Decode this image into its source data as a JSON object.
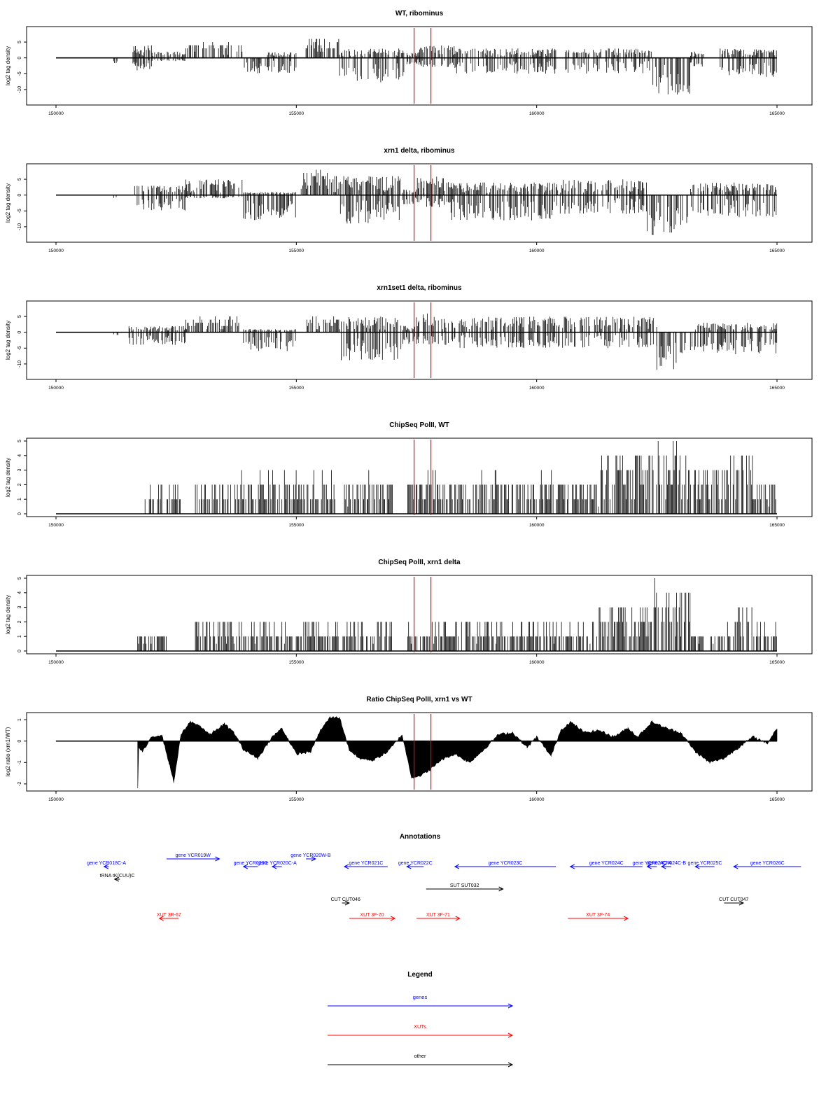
{
  "chart_data": [
    {
      "type": "bar",
      "title": "WT, ribominus",
      "xlabel": "",
      "ylabel": "log2 tag density",
      "xlim": [
        150000,
        165000
      ],
      "ylim": [
        -14,
        9
      ],
      "x_ticks": [
        150000,
        155000,
        160000,
        165000
      ],
      "y_ticks": [
        -10,
        -5,
        0,
        5
      ],
      "marker_lines": [
        157450,
        157800
      ],
      "marker_color": "#ff0000",
      "series": [
        {
          "regions": [
            {
              "start": 151200,
              "end": 151300,
              "min": -2,
              "max": 0
            },
            {
              "start": 151600,
              "end": 152000,
              "min": -4,
              "max": 4
            },
            {
              "start": 152000,
              "end": 152700,
              "min": -1,
              "max": 2
            },
            {
              "start": 152700,
              "end": 153900,
              "min": 0,
              "max": 5
            },
            {
              "start": 153900,
              "end": 154400,
              "min": -5,
              "max": 0
            },
            {
              "start": 154400,
              "end": 155000,
              "min": -5,
              "max": 2
            },
            {
              "start": 155200,
              "end": 155900,
              "min": 0,
              "max": 6
            },
            {
              "start": 155900,
              "end": 156800,
              "min": -8,
              "max": 3
            },
            {
              "start": 156800,
              "end": 157250,
              "min": -7,
              "max": 3
            },
            {
              "start": 157300,
              "end": 157550,
              "min": -2,
              "max": 2
            },
            {
              "start": 157550,
              "end": 158300,
              "min": -3,
              "max": 4
            },
            {
              "start": 158300,
              "end": 160400,
              "min": -5,
              "max": 3
            },
            {
              "start": 160600,
              "end": 162400,
              "min": -5,
              "max": 3
            },
            {
              "start": 162400,
              "end": 163200,
              "min": -12,
              "max": 0
            },
            {
              "start": 163200,
              "end": 163500,
              "min": -3,
              "max": 2
            },
            {
              "start": 163800,
              "end": 165000,
              "min": -6,
              "max": 3
            }
          ]
        }
      ]
    },
    {
      "type": "bar",
      "title": "xrn1 delta, ribominus",
      "xlabel": "",
      "ylabel": "log2 tag density",
      "xlim": [
        150000,
        165000
      ],
      "ylim": [
        -14,
        9
      ],
      "x_ticks": [
        150000,
        155000,
        160000,
        165000
      ],
      "y_ticks": [
        -10,
        -5,
        0,
        5
      ],
      "marker_lines": [
        157450,
        157800
      ],
      "marker_color": "#ff0000",
      "series": [
        {
          "regions": [
            {
              "start": 151200,
              "end": 151300,
              "min": -1,
              "max": 0
            },
            {
              "start": 151600,
              "end": 152700,
              "min": -5,
              "max": 3
            },
            {
              "start": 152700,
              "end": 153900,
              "min": -1,
              "max": 5
            },
            {
              "start": 153900,
              "end": 155000,
              "min": -8,
              "max": 1
            },
            {
              "start": 155100,
              "end": 155900,
              "min": 0,
              "max": 8
            },
            {
              "start": 155900,
              "end": 157200,
              "min": -9,
              "max": 6
            },
            {
              "start": 157200,
              "end": 157500,
              "min": -3,
              "max": 2
            },
            {
              "start": 157500,
              "end": 158200,
              "min": -4,
              "max": 6
            },
            {
              "start": 158200,
              "end": 160500,
              "min": -8,
              "max": 4
            },
            {
              "start": 160500,
              "end": 162300,
              "min": -6,
              "max": 5
            },
            {
              "start": 162300,
              "end": 163200,
              "min": -13,
              "max": 0
            },
            {
              "start": 163200,
              "end": 165000,
              "min": -7,
              "max": 4
            }
          ]
        }
      ]
    },
    {
      "type": "bar",
      "title": "xrn1set1 delta, ribominus",
      "xlabel": "",
      "ylabel": "log2 tag density",
      "xlim": [
        150000,
        165000
      ],
      "ylim": [
        -14,
        9
      ],
      "x_ticks": [
        150000,
        155000,
        160000,
        165000
      ],
      "y_ticks": [
        -10,
        -5,
        0,
        5
      ],
      "marker_lines": [
        157450,
        157800
      ],
      "marker_color": "#ff0000",
      "series": [
        {
          "regions": [
            {
              "start": 151200,
              "end": 151300,
              "min": -1,
              "max": 0
            },
            {
              "start": 151500,
              "end": 152700,
              "min": -4,
              "max": 2
            },
            {
              "start": 152700,
              "end": 153900,
              "min": 0,
              "max": 5
            },
            {
              "start": 153900,
              "end": 155000,
              "min": -6,
              "max": 1
            },
            {
              "start": 155200,
              "end": 155900,
              "min": 0,
              "max": 5
            },
            {
              "start": 155900,
              "end": 157200,
              "min": -9,
              "max": 5
            },
            {
              "start": 157200,
              "end": 157500,
              "min": -4,
              "max": 2
            },
            {
              "start": 157500,
              "end": 158300,
              "min": -4,
              "max": 6
            },
            {
              "start": 158300,
              "end": 160400,
              "min": -5,
              "max": 5
            },
            {
              "start": 160400,
              "end": 162500,
              "min": -5,
              "max": 5
            },
            {
              "start": 162500,
              "end": 163300,
              "min": -12,
              "max": 0
            },
            {
              "start": 163300,
              "end": 165000,
              "min": -7,
              "max": 3
            }
          ]
        }
      ]
    },
    {
      "type": "bar",
      "title": "ChipSeq PolII, WT",
      "xlabel": "",
      "ylabel": "log2 tag density",
      "xlim": [
        150000,
        165000
      ],
      "ylim": [
        0,
        5
      ],
      "x_ticks": [
        150000,
        155000,
        160000,
        165000
      ],
      "y_ticks": [
        0,
        1,
        2,
        3,
        4,
        5
      ],
      "marker_lines": [
        157450,
        157800
      ],
      "marker_color": "#ff0000",
      "series": [
        {
          "regions": [
            {
              "start": 151800,
              "end": 152600,
              "min": 0,
              "max": 2
            },
            {
              "start": 152900,
              "end": 155900,
              "min": 0,
              "max": 2.6
            },
            {
              "start": 156000,
              "end": 157000,
              "min": 0,
              "max": 2.6
            },
            {
              "start": 157300,
              "end": 161300,
              "min": 0,
              "max": 2.6
            },
            {
              "start": 161300,
              "end": 162300,
              "min": 0,
              "max": 4
            },
            {
              "start": 162300,
              "end": 163200,
              "min": 0,
              "max": 5
            },
            {
              "start": 163200,
              "end": 164000,
              "min": 0,
              "max": 3.5
            },
            {
              "start": 164000,
              "end": 164500,
              "min": 0,
              "max": 4.2
            },
            {
              "start": 164500,
              "end": 165000,
              "min": 0,
              "max": 2.5
            }
          ]
        }
      ]
    },
    {
      "type": "bar",
      "title": "ChipSeq PolII, xrn1 delta",
      "xlabel": "",
      "ylabel": "log2 tag density",
      "xlim": [
        150000,
        165000
      ],
      "ylim": [
        0,
        5
      ],
      "x_ticks": [
        150000,
        155000,
        160000,
        165000
      ],
      "y_ticks": [
        0,
        1,
        2,
        3,
        4,
        5
      ],
      "marker_lines": [
        157450,
        157800
      ],
      "marker_color": "#ff0000",
      "series": [
        {
          "regions": [
            {
              "start": 151700,
              "end": 152300,
              "min": 0,
              "max": 1
            },
            {
              "start": 152900,
              "end": 154000,
              "min": 0,
              "max": 2
            },
            {
              "start": 154000,
              "end": 155900,
              "min": 0,
              "max": 1.8
            },
            {
              "start": 155900,
              "end": 157000,
              "min": 0,
              "max": 2.2
            },
            {
              "start": 157300,
              "end": 161300,
              "min": 0,
              "max": 2
            },
            {
              "start": 161300,
              "end": 162300,
              "min": 0,
              "max": 3
            },
            {
              "start": 162300,
              "end": 163200,
              "min": 0,
              "max": 4.7
            },
            {
              "start": 163200,
              "end": 163900,
              "min": 0,
              "max": 1.5
            },
            {
              "start": 163900,
              "end": 164500,
              "min": 0,
              "max": 3.2
            },
            {
              "start": 164500,
              "end": 165000,
              "min": 0,
              "max": 2
            }
          ]
        }
      ]
    },
    {
      "type": "area",
      "title": "Ratio ChipSeq PolII, xrn1 vs WT",
      "xlabel": "",
      "ylabel": "log2 ratio (xrn1/WT)",
      "xlim": [
        150000,
        165000
      ],
      "ylim": [
        -2.2,
        1.2
      ],
      "x_ticks": [
        150000,
        155000,
        160000,
        165000
      ],
      "y_ticks": [
        -2.0,
        -1.0,
        0.0,
        1.0
      ],
      "marker_lines": [
        157450,
        157800
      ],
      "marker_color": "#ff0000",
      "series": [
        {
          "x": [
            150000,
            151700,
            151701,
            151720,
            151800,
            152000,
            152200,
            152350,
            152450,
            152600,
            152800,
            153000,
            153200,
            153500,
            153700,
            153900,
            154200,
            154500,
            154700,
            155000,
            155300,
            155500,
            155700,
            155900,
            156100,
            156300,
            156600,
            156900,
            157200,
            157400,
            157600,
            157800,
            158000,
            158300,
            158600,
            158900,
            159200,
            159500,
            159800,
            160000,
            160300,
            160500,
            160700,
            161000,
            161300,
            161600,
            161900,
            162100,
            162400,
            162700,
            163000,
            163300,
            163600,
            163900,
            164200,
            164500,
            164800,
            165000
          ],
          "values": [
            0,
            0,
            -2.2,
            -0.3,
            -0.5,
            0.2,
            0.3,
            -1.0,
            -1.9,
            0.3,
            0.9,
            0.7,
            0.3,
            0.8,
            0.4,
            -0.4,
            -0.8,
            0.2,
            0.6,
            -0.6,
            -0.5,
            0.5,
            1.1,
            1.1,
            -0.4,
            -0.8,
            -0.9,
            -0.5,
            0.3,
            -1.7,
            -1.6,
            -1.3,
            -0.9,
            -0.6,
            -1.0,
            -0.4,
            0.3,
            0.4,
            -0.3,
            0.2,
            -0.7,
            0.5,
            0.9,
            0.4,
            0.5,
            0.2,
            0.6,
            0.2,
            0.9,
            0.6,
            0.4,
            -0.5,
            -1.0,
            -0.8,
            -0.3,
            0.2,
            -0.1,
            0.6
          ]
        }
      ]
    }
  ],
  "annotations": {
    "title": "Annotations",
    "items": [
      {
        "label": "gene YCR018C-A",
        "kind": "gene",
        "start": 151000,
        "end": 151100,
        "dir": "left",
        "row": 1
      },
      {
        "label": "gene YCR019W",
        "kind": "gene",
        "start": 152300,
        "end": 153400,
        "dir": "right",
        "row": 0
      },
      {
        "label": "gene YCR020C",
        "kind": "gene",
        "start": 153900,
        "end": 154200,
        "dir": "left",
        "row": 1
      },
      {
        "label": "gene YCR020C-A",
        "kind": "gene",
        "start": 154500,
        "end": 154700,
        "dir": "left",
        "row": 1
      },
      {
        "label": "gene YCR020W-B",
        "kind": "gene",
        "start": 155200,
        "end": 155400,
        "dir": "right",
        "row": 0
      },
      {
        "label": "gene YCR021C",
        "kind": "gene",
        "start": 156000,
        "end": 156900,
        "dir": "left",
        "row": 1
      },
      {
        "label": "gene YCR022C",
        "kind": "gene",
        "start": 157300,
        "end": 157650,
        "dir": "left",
        "row": 1
      },
      {
        "label": "gene YCR023C",
        "kind": "gene",
        "start": 158300,
        "end": 160400,
        "dir": "left",
        "row": 1
      },
      {
        "label": "gene YCR024C",
        "kind": "gene",
        "start": 160700,
        "end": 162200,
        "dir": "left",
        "row": 1
      },
      {
        "label": "gene YCR024C-A",
        "kind": "gene",
        "start": 162300,
        "end": 162500,
        "dir": "left",
        "row": 1
      },
      {
        "label": "gene YCR024C-B",
        "kind": "gene",
        "start": 162600,
        "end": 162800,
        "dir": "left",
        "row": 1
      },
      {
        "label": "gene YCR025C",
        "kind": "gene",
        "start": 163300,
        "end": 163700,
        "dir": "left",
        "row": 1
      },
      {
        "label": "gene YCR026C",
        "kind": "gene",
        "start": 164100,
        "end": 165500,
        "dir": "left",
        "row": 1
      },
      {
        "label": "tRNA tK(CUU)C",
        "kind": "other",
        "start": 151220,
        "end": 151330,
        "dir": "left",
        "row": 2
      },
      {
        "label": "SUT SUT032",
        "kind": "other",
        "start": 157700,
        "end": 159300,
        "dir": "right",
        "row": 3
      },
      {
        "label": "CUT CUT046",
        "kind": "other",
        "start": 155950,
        "end": 156100,
        "dir": "right",
        "row": 4
      },
      {
        "label": "CUT CUT047",
        "kind": "other",
        "start": 163900,
        "end": 164300,
        "dir": "right",
        "row": 4
      },
      {
        "label": "XUT 3R-67",
        "kind": "xut",
        "start": 152150,
        "end": 152550,
        "dir": "left",
        "row": 5
      },
      {
        "label": "XUT 3F-70",
        "kind": "xut",
        "start": 156100,
        "end": 157050,
        "dir": "right",
        "row": 5
      },
      {
        "label": "XUT 3F-71",
        "kind": "xut",
        "start": 157500,
        "end": 158400,
        "dir": "right",
        "row": 5
      },
      {
        "label": "XUT 3F-74",
        "kind": "xut",
        "start": 160650,
        "end": 161900,
        "dir": "right",
        "row": 5
      }
    ]
  },
  "legend": {
    "title": "Legend",
    "items": [
      {
        "label": "genes",
        "color": "#0000ff"
      },
      {
        "label": "XUTs",
        "color": "#ff0000"
      },
      {
        "label": "other",
        "color": "#000000"
      }
    ]
  },
  "colors": {
    "gene": "#0000ff",
    "xut": "#ff0000",
    "other": "#000000",
    "bars": "#000000"
  }
}
